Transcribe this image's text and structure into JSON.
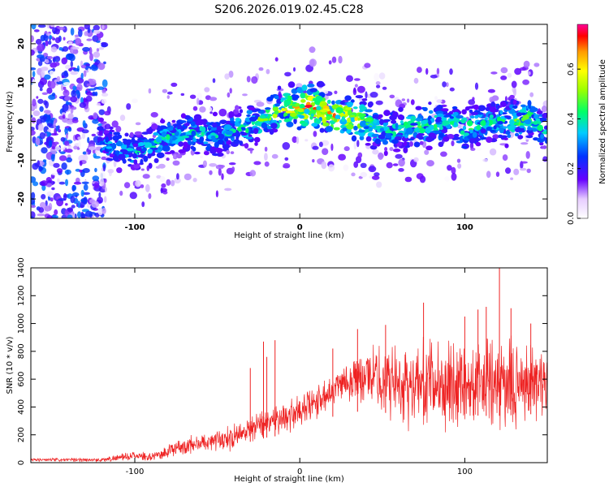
{
  "title": "S206.2026.019.02.45.C28",
  "chart_data": [
    {
      "type": "heatmap",
      "title": "S206.2026.019.02.45.C28",
      "xlabel": "Height of straight line (km)",
      "ylabel": "Frequency (Hz)",
      "xlim": [
        -163,
        150
      ],
      "ylim": [
        -25,
        25
      ],
      "xticks": [
        -100,
        0,
        100
      ],
      "yticks": [
        -20,
        -10,
        0,
        10,
        20
      ],
      "colorbar": {
        "label": "Normalized spectral amplitude",
        "range": [
          0,
          0.78
        ],
        "ticks": [
          "0.0",
          "0.2",
          "0.4",
          "0.6"
        ],
        "colors": [
          "#ffffff",
          "#6600ff",
          "#0033ff",
          "#00ccff",
          "#00ff66",
          "#99ff00",
          "#ffff00",
          "#ff9900",
          "#ff0000",
          "#ff0099"
        ]
      },
      "ridge": {
        "x": [
          -120,
          -110,
          -100,
          -90,
          -80,
          -70,
          -60,
          -50,
          -40,
          -30,
          -20,
          -10,
          0,
          10,
          20,
          30,
          40,
          50,
          60,
          70,
          80,
          90,
          100,
          110,
          120,
          130,
          140,
          150
        ],
        "freq": [
          -5,
          -7,
          -8,
          -6,
          -4,
          -3,
          -3,
          -4,
          -2,
          -1,
          1,
          3,
          3.5,
          4,
          1.5,
          1,
          0,
          -3,
          -2,
          -1,
          -1,
          0,
          -2,
          -1,
          0,
          0,
          1,
          -3
        ],
        "amplitude": [
          0.25,
          0.25,
          0.28,
          0.3,
          0.3,
          0.3,
          0.3,
          0.28,
          0.3,
          0.35,
          0.4,
          0.45,
          0.6,
          0.65,
          0.55,
          0.55,
          0.4,
          0.3,
          0.32,
          0.35,
          0.35,
          0.3,
          0.35,
          0.32,
          0.32,
          0.4,
          0.35,
          0.28
        ]
      }
    },
    {
      "type": "line",
      "xlabel": "Height of straight line (km)",
      "ylabel": "SNR (10 * v/v)",
      "xlim": [
        -163,
        150
      ],
      "ylim": [
        0,
        1400
      ],
      "xticks": [
        -100,
        0,
        100
      ],
      "yticks": [
        0,
        200,
        400,
        600,
        800,
        1000,
        1200,
        1400
      ],
      "color": "#ee2222",
      "envelope": {
        "x": [
          -163,
          -140,
          -120,
          -110,
          -100,
          -90,
          -80,
          -70,
          -60,
          -50,
          -40,
          -30,
          -20,
          -10,
          0,
          10,
          20,
          30,
          40,
          50,
          60,
          70,
          80,
          90,
          100,
          110,
          120,
          130,
          140,
          150
        ],
        "mean": [
          20,
          20,
          20,
          35,
          50,
          40,
          80,
          120,
          140,
          170,
          180,
          250,
          300,
          330,
          360,
          430,
          550,
          600,
          620,
          600,
          580,
          560,
          560,
          570,
          580,
          560,
          560,
          570,
          580,
          560
        ],
        "spread": [
          10,
          10,
          12,
          18,
          25,
          20,
          40,
          50,
          55,
          60,
          70,
          80,
          90,
          90,
          100,
          100,
          100,
          120,
          150,
          200,
          220,
          240,
          250,
          250,
          250,
          250,
          260,
          250,
          250,
          250
        ]
      },
      "spikes": [
        {
          "x": -30,
          "y": 680
        },
        {
          "x": -22,
          "y": 870
        },
        {
          "x": -20,
          "y": 760
        },
        {
          "x": -15,
          "y": 880
        },
        {
          "x": 20,
          "y": 820
        },
        {
          "x": 35,
          "y": 960
        },
        {
          "x": 52,
          "y": 990
        },
        {
          "x": 75,
          "y": 1150
        },
        {
          "x": 100,
          "y": 1050
        },
        {
          "x": 108,
          "y": 1100
        },
        {
          "x": 113,
          "y": 1120
        },
        {
          "x": 121,
          "y": 1400
        },
        {
          "x": 128,
          "y": 1110
        },
        {
          "x": 140,
          "y": 1000
        }
      ]
    }
  ]
}
